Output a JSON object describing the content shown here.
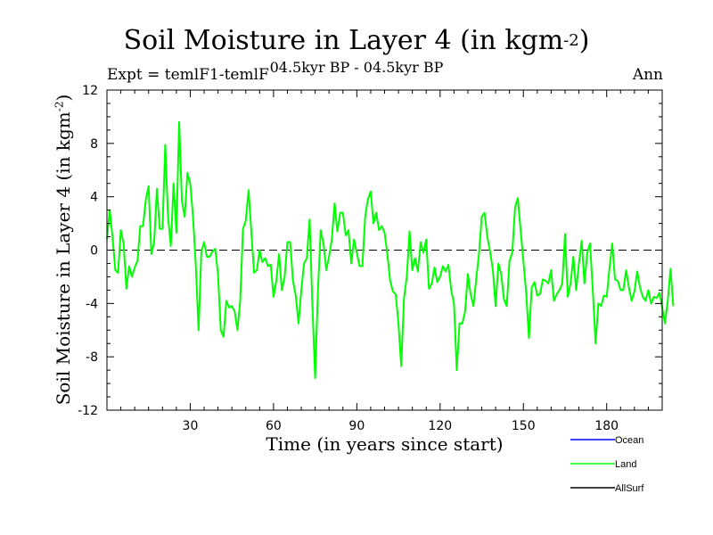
{
  "chart_data": {
    "type": "line",
    "title": "Soil Moisture in Layer 4 (in kgm",
    "title_sup": "-2",
    "title_close": ")",
    "subtitle": "04.5kyr BP - 04.5kyr BP",
    "expt_label": "Expt = temlF1-temlF",
    "season": "Ann",
    "xlabel": "Time (in years since start)",
    "ylabel": "Soil Moisture in Layer 4 (in kgm",
    "ylabel_sup": "-2",
    "ylabel_close": ")",
    "xlim": [
      0,
      200
    ],
    "ylim": [
      -12,
      12
    ],
    "x_ticks": [
      30,
      60,
      90,
      120,
      150,
      180
    ],
    "y_ticks": [
      -12,
      -8,
      -4,
      0,
      4,
      8,
      12
    ],
    "reference_line": 0,
    "colors": {
      "ocean": "#0000ff",
      "land": "#00ff00",
      "allsurf": "#000000"
    },
    "legend": [
      {
        "name": "Ocean",
        "color_key": "ocean"
      },
      {
        "name": "Land",
        "color_key": "land"
      },
      {
        "name": "AllSurf",
        "color_key": "allsurf"
      }
    ],
    "series": [
      {
        "name": "Land",
        "color_key": "land",
        "values": [
          0.8,
          3.0,
          1.0,
          -1.5,
          -1.7,
          1.5,
          0.5,
          -2.9,
          -1.2,
          -2.0,
          -1.3,
          -0.8,
          1.8,
          1.8,
          3.8,
          4.8,
          -0.3,
          0.6,
          4.6,
          1.6,
          1.6,
          7.9,
          2.5,
          0.3,
          5.0,
          1.3,
          9.6,
          3.7,
          2.5,
          5.8,
          5.0,
          2.5,
          -1.1,
          -6.0,
          -0.1,
          0.6,
          -0.5,
          -0.5,
          -0.1,
          0.1,
          -1.8,
          -6.0,
          -6.5,
          -3.8,
          -4.3,
          -4.2,
          -4.6,
          -6.0,
          -3.8,
          1.6,
          2.2,
          4.5,
          1.4,
          -1.7,
          -1.5,
          0.0,
          -0.9,
          -0.6,
          -1.2,
          -1.1,
          -3.5,
          -2.3,
          -0.3,
          -3.0,
          -2.0,
          0.6,
          0.6,
          -2.3,
          -3.4,
          -5.5,
          -3.0,
          -1.0,
          -0.6,
          2.3,
          -4.2,
          -9.6,
          -3.0,
          1.5,
          0.5,
          -1.5,
          -0.5,
          0.8,
          3.5,
          1.4,
          2.8,
          2.8,
          1.1,
          1.5,
          -1.0,
          0.8,
          -0.2,
          -1.2,
          -1.2,
          2.5,
          3.8,
          4.4,
          2.0,
          2.8,
          1.5,
          1.8,
          1.3,
          -0.3,
          -2.3,
          -3.1,
          -3.3,
          -5.5,
          -8.7,
          -3.6,
          -2.0,
          1.4,
          -1.5,
          -0.6,
          -1.6,
          0.6,
          -0.2,
          0.8,
          -2.9,
          -2.5,
          -1.3,
          -2.4,
          -2.0,
          -1.2,
          -1.6,
          -1.1,
          -3.0,
          -4.0,
          -9.0,
          -5.5,
          -5.5,
          -4.6,
          -1.8,
          -3.3,
          -4.2,
          -2.2,
          -0.3,
          2.5,
          2.8,
          1.0,
          -0.1,
          -1.5,
          -4.2,
          -1.0,
          -1.8,
          -3.7,
          -4.2,
          -0.8,
          -0.2,
          3.2,
          3.9,
          1.5,
          -0.8,
          -3.2,
          -6.6,
          -2.8,
          -2.4,
          -3.4,
          -3.3,
          -2.2,
          -2.3,
          -2.5,
          -1.5,
          -3.8,
          -3.3,
          -3.0,
          -2.5,
          1.2,
          -3.5,
          -2.5,
          -0.5,
          -3.0,
          -1.0,
          0.7,
          -2.5,
          -0.2,
          0.5,
          -3.0,
          -7.0,
          -4.0,
          -4.2,
          -3.4,
          -3.5,
          -1.4,
          0.5,
          -2.2,
          -2.3,
          -3.0,
          -3.0,
          -1.5,
          -2.8,
          -3.8,
          -3.1,
          -1.6,
          -2.8,
          -3.5,
          -3.8,
          -3.0,
          -4.0,
          -3.5,
          -3.6,
          -3.2,
          -4.3,
          -5.5,
          -3.8,
          -1.4,
          -4.2
        ]
      }
    ]
  }
}
